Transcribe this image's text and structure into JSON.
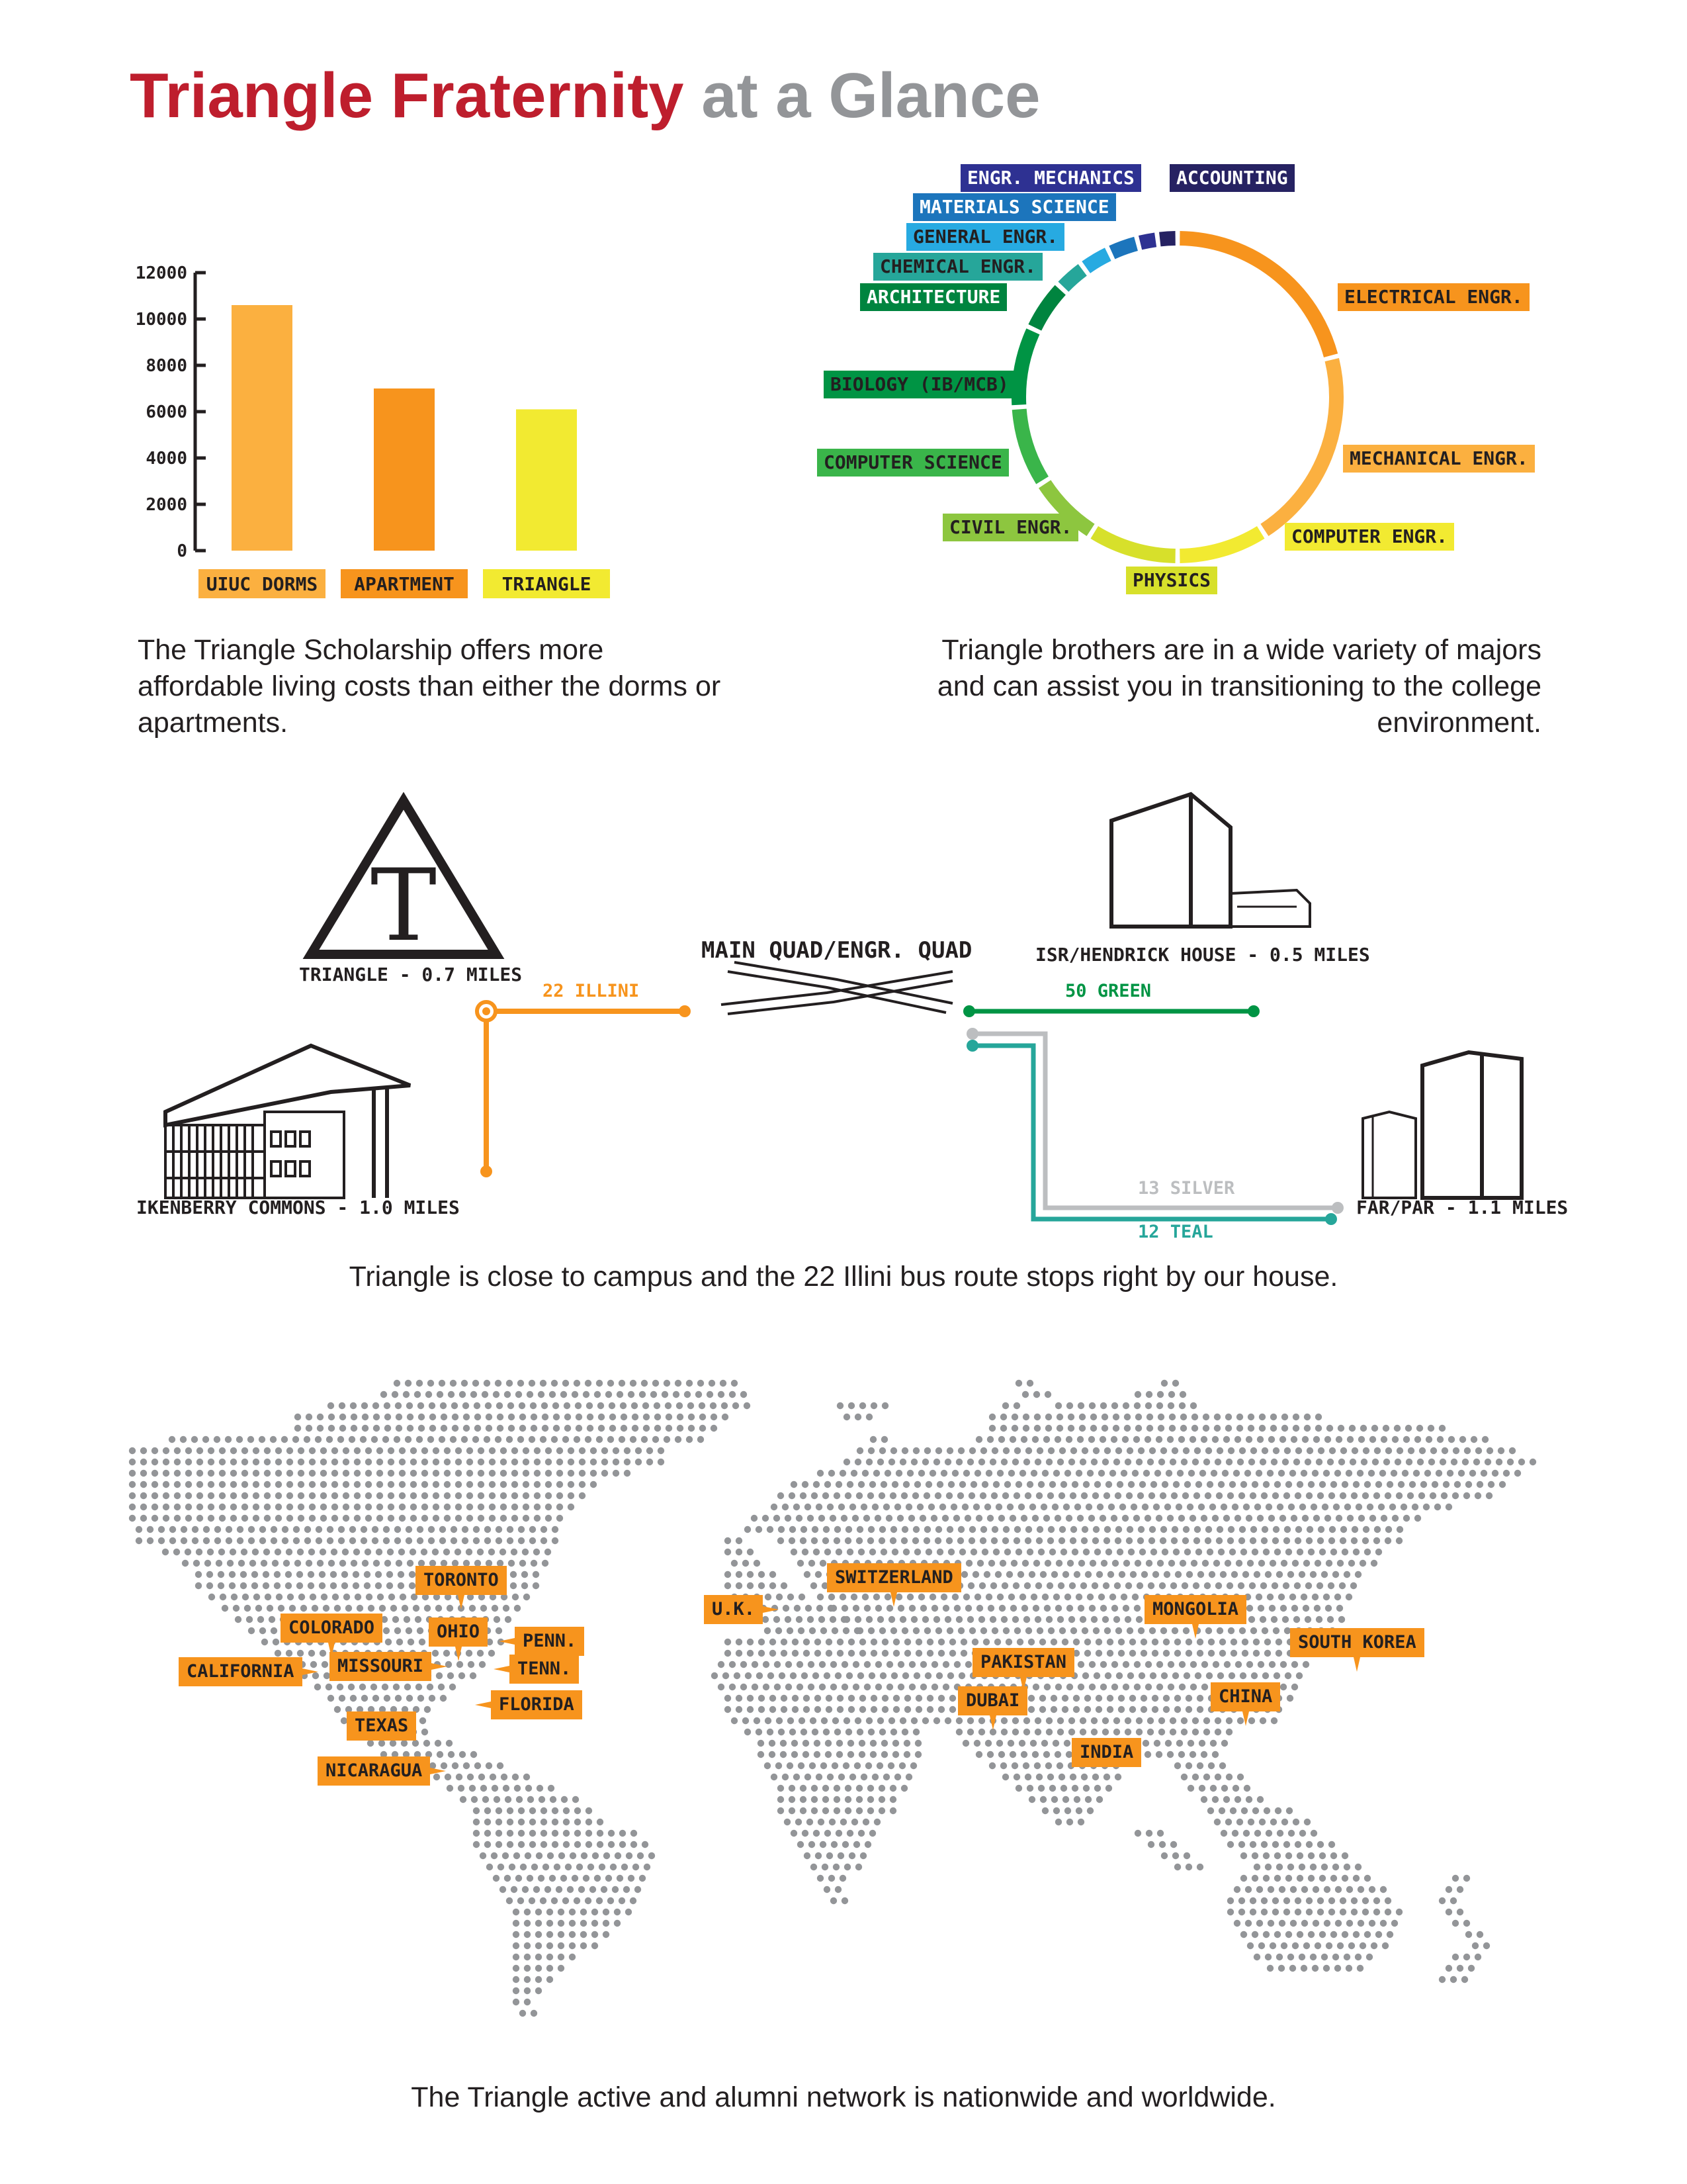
{
  "title": {
    "main": "Triangle Fraternity",
    "sub": "at a Glance"
  },
  "colors": {
    "title_red": "#be1e2d",
    "title_grey": "#939598",
    "orange": "#f7941d",
    "teal": "#26a69a",
    "green": "#009444",
    "silver": "#bcbec0"
  },
  "chart_data": {
    "type": "bar",
    "categories": [
      "UIUC DORMS",
      "APARTMENT",
      "TRIANGLE"
    ],
    "values": [
      10600,
      7000,
      6100
    ],
    "colors": [
      "#fbb040",
      "#f7941d",
      "#f2ea31"
    ],
    "yticks": [
      "0",
      "2000",
      "4000",
      "6000",
      "8000",
      "10000",
      "12000"
    ],
    "ylim": [
      0,
      12000
    ],
    "xlabel": "",
    "ylabel": ""
  },
  "cost_caption": "The Triangle Scholarship offers more affordable living costs than either the dorms or apartments.",
  "majors": [
    {
      "label": "ELECTRICAL ENGR.",
      "color": "#f7941d",
      "share": 21
    },
    {
      "label": "MECHANICAL ENGR.",
      "color": "#fbb040",
      "share": 20
    },
    {
      "label": "COMPUTER ENGR.",
      "color": "#f2ea31",
      "share": 9
    },
    {
      "label": "PHYSICS",
      "color": "#d7e02b",
      "share": 9
    },
    {
      "label": "CIVIL ENGR.",
      "color": "#8dc63f",
      "share": 7
    },
    {
      "label": "COMPUTER SCIENCE",
      "color": "#3ab54a",
      "share": 8
    },
    {
      "label": "BIOLOGY (IB/MCB)",
      "color": "#009444",
      "share": 8
    },
    {
      "label": "ARCHITECTURE",
      "color": "#00843f",
      "share": 5
    },
    {
      "label": "CHEMICAL ENGR.",
      "color": "#26a69a",
      "share": 3
    },
    {
      "label": "GENERAL ENGR.",
      "color": "#27aae1",
      "share": 3
    },
    {
      "label": "MATERIALS SCIENCE",
      "color": "#1c75bc",
      "share": 3
    },
    {
      "label": "ENGR. MECHANICS",
      "color": "#2e3192",
      "share": 2
    },
    {
      "label": "ACCOUNTING",
      "color": "#262262",
      "share": 2
    }
  ],
  "majors_caption": "Triangle brothers are in a wide variety of majors and can assist you in transitioning to the college environment.",
  "transit": {
    "triangle": "TRIANGLE - 0.7 MILES",
    "ikenberry": "IKENBERRY COMMONS - 1.0 MILES",
    "main_quad": "MAIN QUAD/ENGR. QUAD",
    "isr": "ISR/HENDRICK HOUSE - 0.5 MILES",
    "farpar": "FAR/PAR - 1.1 MILES",
    "route_illini": "22 ILLINI",
    "route_green": "50 GREEN",
    "route_silver": "13 SILVER",
    "route_teal": "12 TEAL",
    "logo_letter": "T"
  },
  "transit_caption": "Triangle is close to campus and the 22 Illini bus route stops right by our house.",
  "locations": {
    "toronto": "TORONTO",
    "colorado": "COLORADO",
    "ohio": "OHIO",
    "penn": "PENN.",
    "california": "CALIFORNIA",
    "missouri": "MISSOURI",
    "tenn": "TENN.",
    "florida": "FLORIDA",
    "texas": "TEXAS",
    "nicaragua": "NICARAGUA",
    "uk": "U.K.",
    "switzerland": "SWITZERLAND",
    "mongolia": "MONGOLIA",
    "south_korea": "SOUTH KOREA",
    "pakistan": "PAKISTAN",
    "dubai": "DUBAI",
    "china": "CHINA",
    "india": "INDIA"
  },
  "network_caption": "The Triangle active and alumni network is nationwide and worldwide."
}
